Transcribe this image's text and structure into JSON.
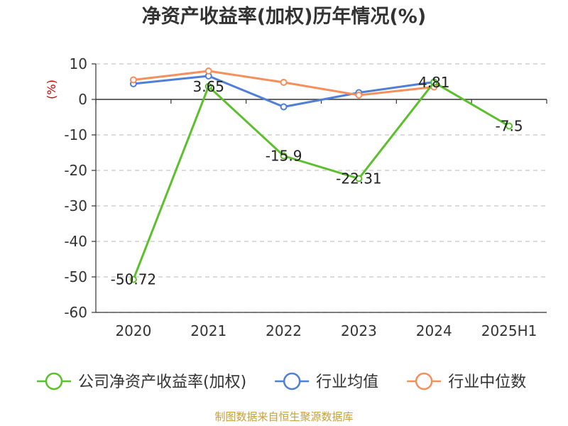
{
  "chart_data": {
    "type": "line",
    "title": "净资产收益率(加权)历年情况(%)",
    "ylabel": "(%)",
    "categories": [
      "2020",
      "2021",
      "2022",
      "2023",
      "2024",
      "2025H1"
    ],
    "ylim": [
      -60,
      10
    ],
    "yticks": [
      10,
      0,
      -10,
      -20,
      -30,
      -40,
      -50,
      -60
    ],
    "grid": true,
    "legend_position": "bottom",
    "series": [
      {
        "name": "公司净资产收益率(加权)",
        "color": "#5cc02c",
        "values": [
          -50.72,
          3.65,
          -15.9,
          -22.31,
          4.81,
          -7.5
        ],
        "labels": [
          "-50.72",
          "3.65",
          "-15.9",
          "-22.31",
          "4.81",
          "-7.5"
        ]
      },
      {
        "name": "行业均值",
        "color": "#4f7fd6",
        "values": [
          4.4,
          6.6,
          -2.1,
          1.9,
          4.9,
          null
        ]
      },
      {
        "name": "行业中位数",
        "color": "#f58f5c",
        "values": [
          5.5,
          8.0,
          4.8,
          1.2,
          3.5,
          null
        ]
      }
    ]
  },
  "source_text": "制图数据来自恒生聚源数据库"
}
